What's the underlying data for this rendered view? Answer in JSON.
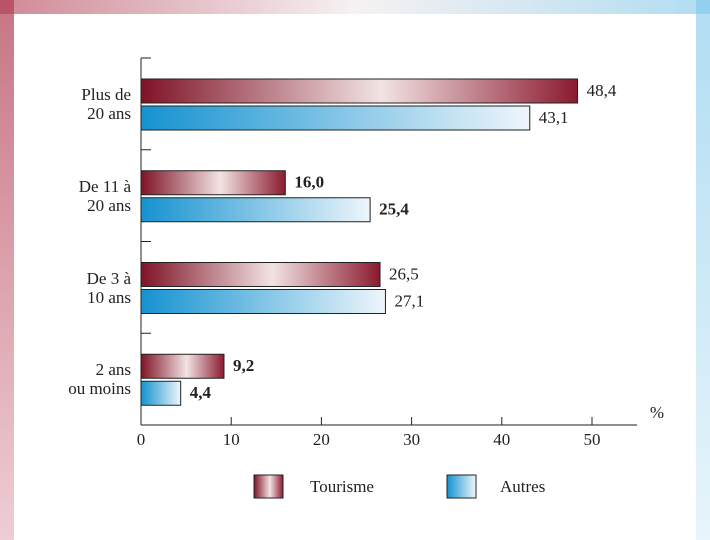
{
  "chart_data": {
    "type": "hbar",
    "categories": [
      "Plus de\n20 ans",
      "De 11 à\n20 ans",
      "De 3 à\n10 ans",
      "2 ans\nou moins"
    ],
    "series": [
      {
        "name": "Tourisme",
        "color": "#8b1a2e",
        "values": [
          48.4,
          16.0,
          26.5,
          9.2
        ],
        "value_labels": [
          "48,4",
          "16,0",
          "26,5",
          "9,2"
        ]
      },
      {
        "name": "Autres",
        "color": "#1a9ad6",
        "values": [
          43.1,
          25.4,
          27.1,
          4.4
        ],
        "value_labels": [
          "43,1",
          "25,4",
          "27,1",
          "4,4"
        ]
      }
    ],
    "xlim": [
      0,
      55
    ],
    "xticks": [
      0,
      10,
      20,
      30,
      40,
      50
    ],
    "xlabel": "%",
    "grid": false,
    "legend": "bottom"
  }
}
